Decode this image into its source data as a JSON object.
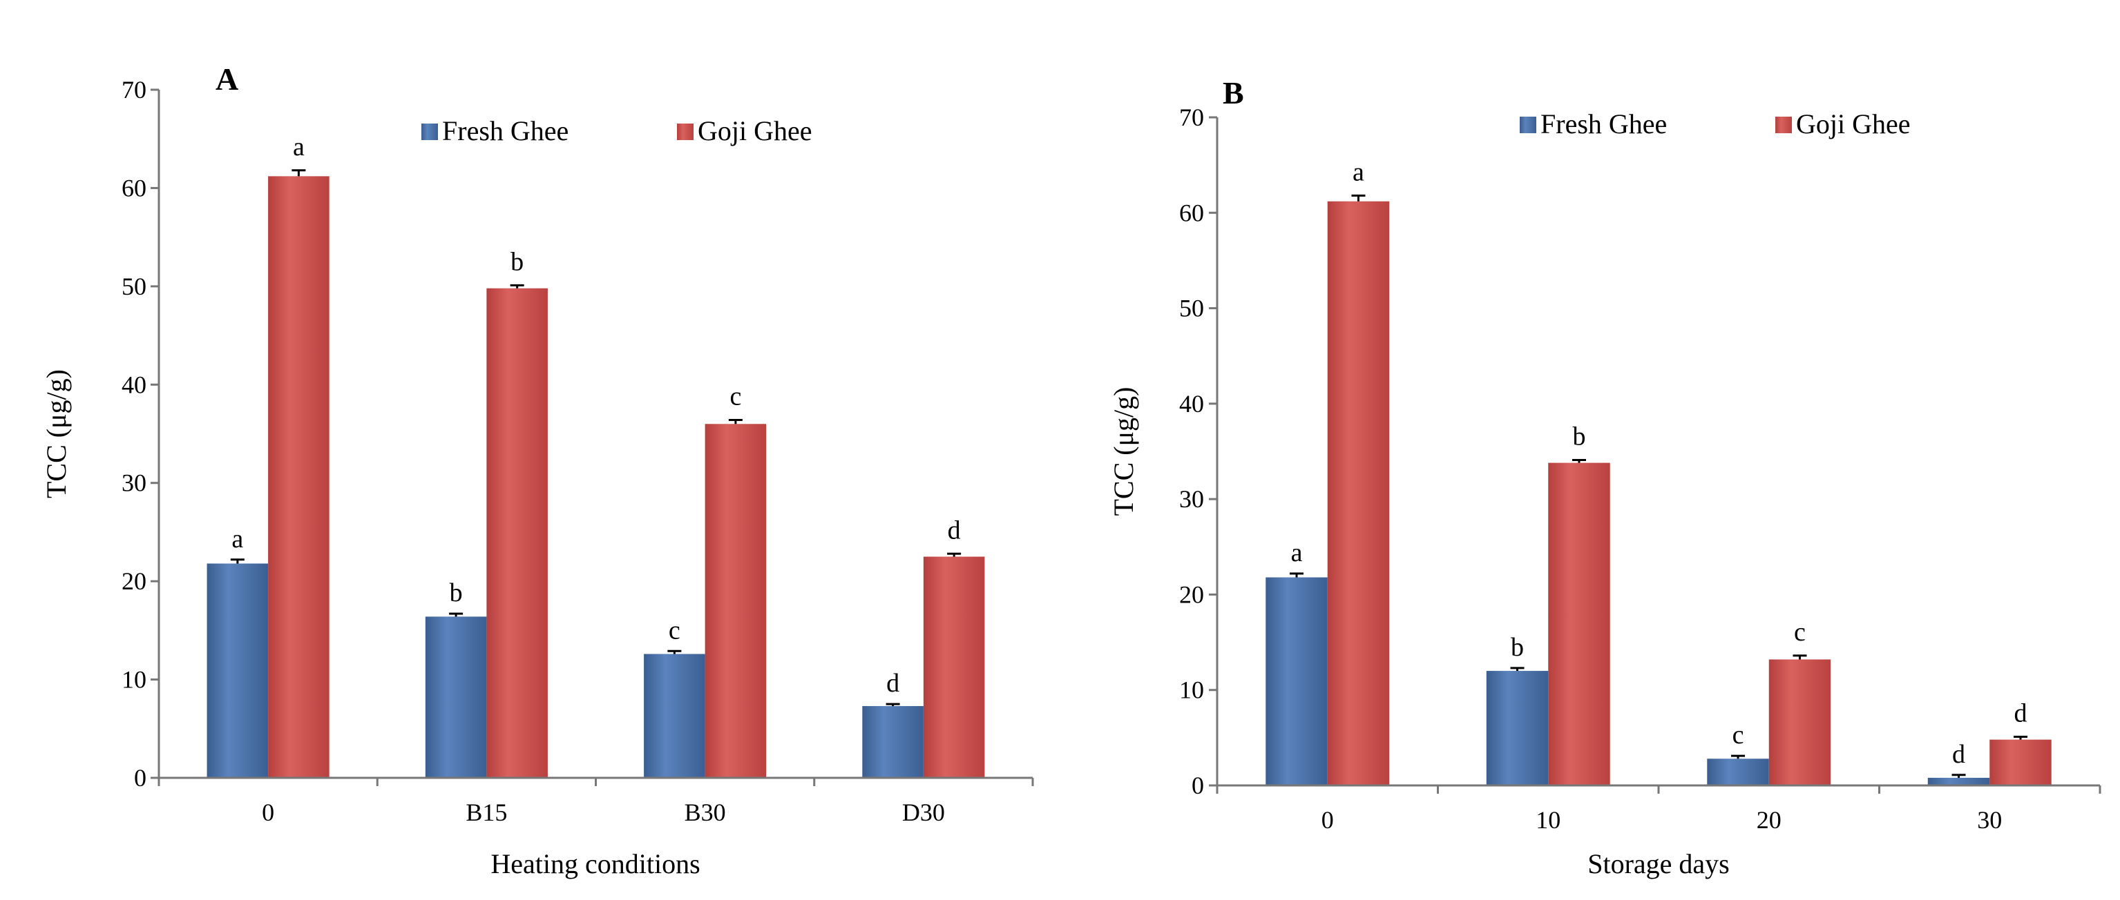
{
  "chart_data": [
    {
      "type": "bar",
      "panel": "A",
      "xlabel": "Heating conditions",
      "ylabel": "TCC (μg/g)",
      "categories": [
        "0",
        "B15",
        "B30",
        "D30"
      ],
      "ylim": [
        0,
        70
      ],
      "yticks": [
        0,
        10,
        20,
        30,
        40,
        50,
        60,
        70
      ],
      "legend_position": "top-center",
      "grid": false,
      "series": [
        {
          "name": "Fresh Ghee",
          "color": "#4a6fa5",
          "values": [
            21.8,
            16.4,
            12.6,
            7.3
          ],
          "errors": [
            0.4,
            0.3,
            0.3,
            0.2
          ],
          "letters": [
            "a",
            "b",
            "c",
            "d"
          ]
        },
        {
          "name": "Goji Ghee",
          "color": "#c9504e",
          "values": [
            61.2,
            49.8,
            36.0,
            22.5
          ],
          "errors": [
            0.6,
            0.3,
            0.4,
            0.3
          ],
          "letters": [
            "a",
            "b",
            "c",
            "d"
          ]
        }
      ]
    },
    {
      "type": "bar",
      "panel": "B",
      "xlabel": "Storage days",
      "ylabel": "TCC (μg/g)",
      "categories": [
        "0",
        "10",
        "20",
        "30"
      ],
      "ylim": [
        0,
        70
      ],
      "yticks": [
        0,
        10,
        20,
        30,
        40,
        50,
        60,
        70
      ],
      "legend_position": "top-center",
      "grid": false,
      "series": [
        {
          "name": "Fresh Ghee",
          "color": "#4a6fa5",
          "values": [
            21.8,
            12.0,
            2.8,
            0.8
          ],
          "errors": [
            0.4,
            0.3,
            0.3,
            0.3
          ],
          "letters": [
            "a",
            "b",
            "c",
            "d"
          ]
        },
        {
          "name": "Goji Ghee",
          "color": "#c9504e",
          "values": [
            61.2,
            33.8,
            13.2,
            4.8
          ],
          "errors": [
            0.6,
            0.3,
            0.4,
            0.3
          ],
          "letters": [
            "a",
            "b",
            "c",
            "d"
          ]
        }
      ]
    }
  ]
}
